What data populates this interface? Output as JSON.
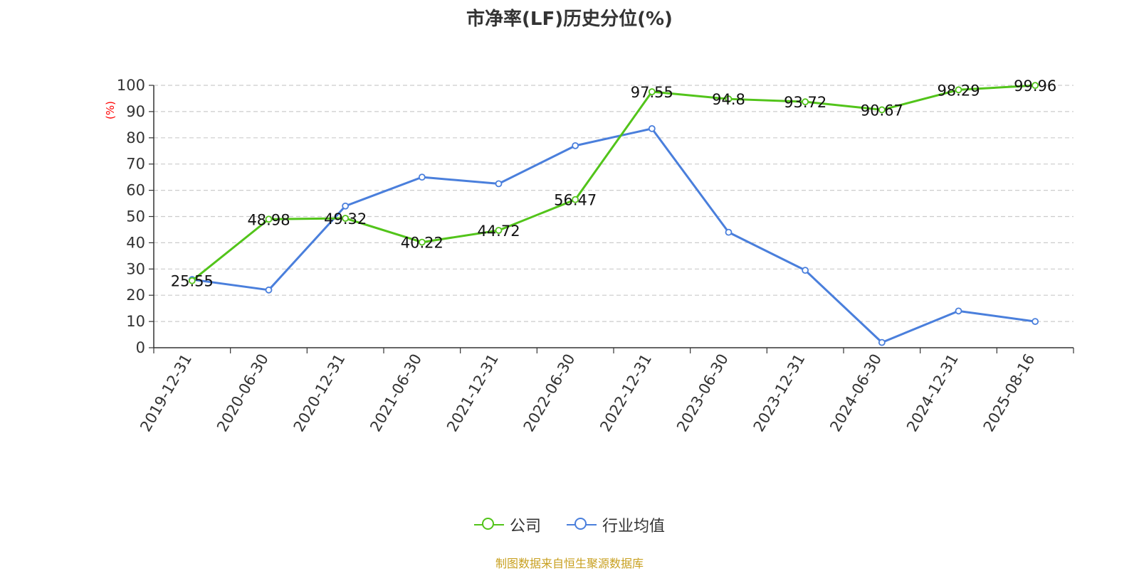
{
  "page": {
    "title": "市净率(LF)历史分位(%)",
    "source_note": "制图数据来自恒生聚源数据库"
  },
  "legend": {
    "items": [
      {
        "label": "公司",
        "color": "#52c41a"
      },
      {
        "label": "行业均值",
        "color": "#4a7fdc"
      }
    ]
  },
  "chart_data": {
    "type": "line",
    "title": "市净率(LF)历史分位(%)",
    "ylabel": "(%)",
    "xlabel": "",
    "ylim": [
      0,
      100
    ],
    "yticks": [
      0,
      10,
      20,
      30,
      40,
      50,
      60,
      70,
      80,
      90,
      100
    ],
    "grid": true,
    "legend_position": "bottom",
    "categories": [
      "2019-12-31",
      "2020-06-30",
      "2020-12-31",
      "2021-06-30",
      "2021-12-31",
      "2022-06-30",
      "2022-12-31",
      "2023-06-30",
      "2023-12-31",
      "2024-06-30",
      "2024-12-31",
      "2025-08-16"
    ],
    "series": [
      {
        "name": "公司",
        "color": "#52c41a",
        "show_labels": true,
        "values": [
          25.55,
          48.98,
          49.32,
          40.22,
          44.72,
          56.47,
          97.55,
          94.8,
          93.72,
          90.67,
          98.29,
          99.96
        ]
      },
      {
        "name": "行业均值",
        "color": "#4a7fdc",
        "show_labels": false,
        "values": [
          26,
          22,
          54,
          65,
          62.5,
          77,
          83.5,
          44,
          29.5,
          2,
          14,
          10
        ]
      }
    ]
  }
}
